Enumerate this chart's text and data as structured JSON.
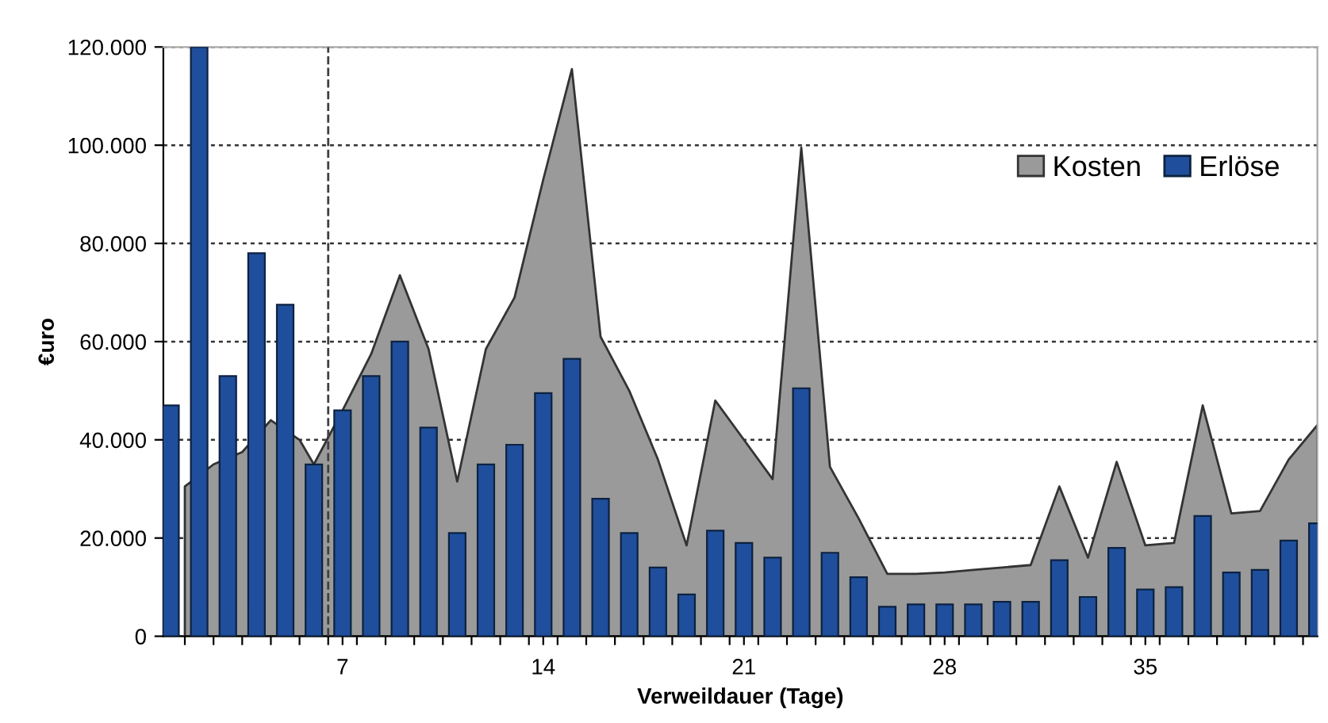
{
  "chart_data": {
    "type": "bar",
    "xlabel": "Verweildauer (Tage)",
    "ylabel": "€uro",
    "x": [
      1,
      2,
      3,
      4,
      5,
      6,
      7,
      8,
      9,
      10,
      11,
      12,
      13,
      14,
      15,
      16,
      17,
      18,
      19,
      20,
      21,
      22,
      23,
      24,
      25,
      26,
      27,
      28,
      29,
      30,
      31,
      32,
      33,
      34,
      35,
      36,
      37,
      38,
      39,
      40,
      41
    ],
    "xlim": [
      0.75,
      41
    ],
    "xticks": [
      {
        "value": 1.5,
        "label": null
      },
      {
        "value": 2.5,
        "label": null
      },
      {
        "value": 3.5,
        "label": null
      },
      {
        "value": 4.5,
        "label": null
      },
      {
        "value": 5.5,
        "label": null
      },
      {
        "value": 6.5,
        "label": null
      },
      7,
      {
        "value": 7.5,
        "label": null
      },
      {
        "value": 8.5,
        "label": null
      },
      {
        "value": 9.5,
        "label": null
      },
      {
        "value": 10.5,
        "label": null
      },
      {
        "value": 11.5,
        "label": null
      },
      {
        "value": 12.5,
        "label": null
      },
      {
        "value": 13.5,
        "label": null
      },
      14,
      {
        "value": 14.5,
        "label": null
      },
      {
        "value": 15.5,
        "label": null
      },
      {
        "value": 16.5,
        "label": null
      },
      {
        "value": 17.5,
        "label": null
      },
      {
        "value": 18.5,
        "label": null
      },
      {
        "value": 19.5,
        "label": null
      },
      {
        "value": 20.5,
        "label": null
      },
      21,
      {
        "value": 21.5,
        "label": null
      },
      {
        "value": 22.5,
        "label": null
      },
      {
        "value": 23.5,
        "label": null
      },
      {
        "value": 24.5,
        "label": null
      },
      {
        "value": 25.5,
        "label": null
      },
      {
        "value": 26.5,
        "label": null
      },
      {
        "value": 27.5,
        "label": null
      },
      28,
      {
        "value": 28.5,
        "label": null
      },
      {
        "value": 29.5,
        "label": null
      },
      {
        "value": 30.5,
        "label": null
      },
      {
        "value": 31.5,
        "label": null
      },
      {
        "value": 32.5,
        "label": null
      },
      {
        "value": 33.5,
        "label": null
      },
      {
        "value": 34.5,
        "label": null
      },
      35,
      {
        "value": 35.5,
        "label": null
      },
      {
        "value": 36.5,
        "label": null
      },
      {
        "value": 37.5,
        "label": null
      },
      {
        "value": 38.5,
        "label": null
      },
      {
        "value": 39.5,
        "label": null
      },
      {
        "value": 40.5,
        "label": null
      }
    ],
    "ylim": [
      0,
      120000
    ],
    "yticks": [
      {
        "value": 0,
        "label": "0"
      },
      {
        "value": 20000,
        "label": "20.000"
      },
      {
        "value": 40000,
        "label": "40.000"
      },
      {
        "value": 60000,
        "label": "60.000"
      },
      {
        "value": 80000,
        "label": "80.000"
      },
      {
        "value": 100000,
        "label": "100.000"
      },
      {
        "value": 120000,
        "label": "120.000"
      }
    ],
    "grid": "y",
    "legend": "top right",
    "ref_lines": [
      {
        "axis": "x",
        "value": 6.5,
        "line_style": "dashed",
        "color": "#404040"
      }
    ],
    "series": [
      {
        "name": "Kosten",
        "type": "area",
        "color": "#9a9a9a",
        "x": [
          1.5,
          2.5,
          3.5,
          4.5,
          5.5,
          6,
          7,
          8,
          9,
          10,
          11,
          12,
          13,
          14,
          15,
          16,
          17,
          18,
          19,
          20,
          21,
          22,
          23,
          24,
          25,
          26,
          27,
          28,
          29,
          30,
          31,
          32,
          33,
          34,
          35,
          36,
          37,
          38,
          39,
          40,
          41
        ],
        "values": [
          30500,
          35000,
          37500,
          44000,
          40000,
          35000,
          46000,
          57500,
          73500,
          58500,
          31500,
          58500,
          69000,
          93000,
          115500,
          61000,
          50000,
          36000,
          18500,
          48000,
          40000,
          32000,
          99500,
          34500,
          24000,
          12700,
          12700,
          13000,
          13500,
          14000,
          14500,
          30500,
          16000,
          35500,
          18500,
          19000,
          47000,
          25000,
          25500,
          36000,
          43000
        ]
      },
      {
        "name": "Erlöse",
        "color": "#1f4e9c",
        "values": [
          47000,
          120000,
          53000,
          78000,
          67500,
          35000,
          46000,
          53000,
          60000,
          42500,
          21000,
          35000,
          39000,
          49500,
          56500,
          28000,
          21000,
          14000,
          8500,
          21500,
          19000,
          16000,
          50500,
          17000,
          12000,
          6000,
          6500,
          6500,
          6500,
          7000,
          7000,
          15500,
          8000,
          18000,
          9500,
          10000,
          24500,
          13000,
          13500,
          19500,
          23000
        ]
      }
    ]
  }
}
